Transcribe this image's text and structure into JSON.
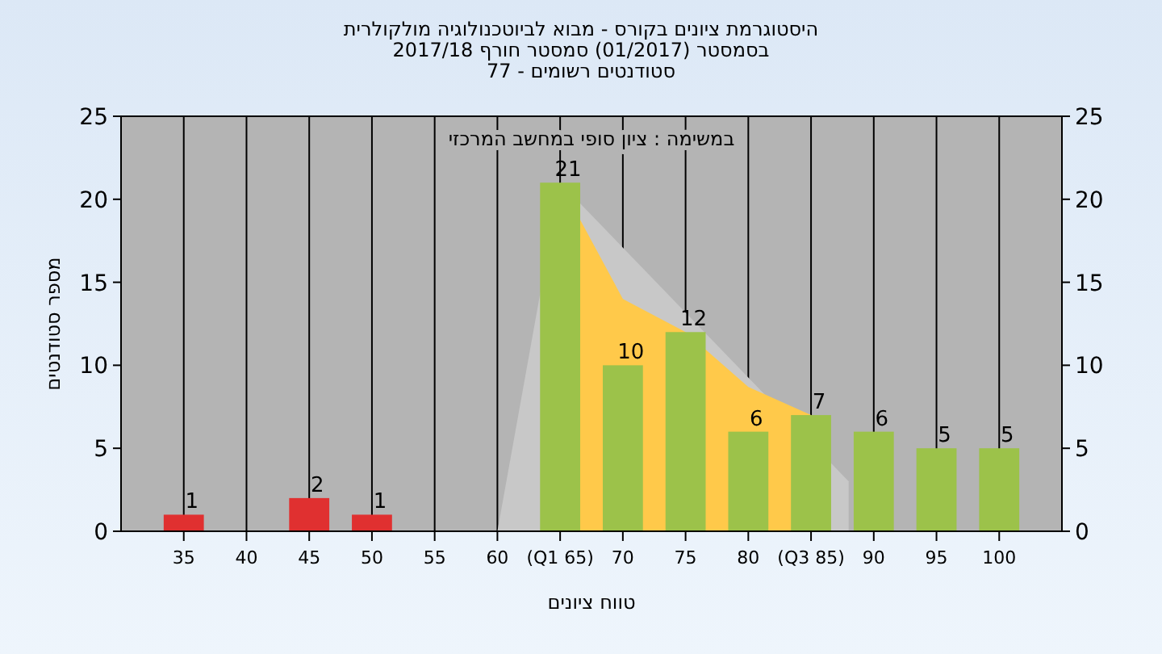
{
  "chart_data": {
    "type": "bar",
    "title": "היסטוגרמת ציונים בקורס - מבוא לביוטכנולוגיה מולקולרית",
    "subtitle": "בסמסטר  (01/2017)  סמסטר חורף 2017/18\nסטודנטים רשומים - 77",
    "xlabel": "טווח ציונים",
    "ylabel": "מספר סטודנטים",
    "annotations": [
      "במשימה : ציון סופי במחשב המרכזי"
    ],
    "series": [
      {
        "type": "area",
        "color": "#c8c8c8",
        "x": [
          60,
          65,
          88
        ],
        "values": [
          0,
          21,
          3
        ]
      },
      {
        "type": "area",
        "color": "#ffc94a",
        "x": [
          65,
          70,
          75,
          80,
          85
        ],
        "values": [
          21,
          14,
          12,
          8.7,
          7
        ]
      },
      {
        "x": [
          35,
          45,
          50,
          65,
          70,
          75,
          80,
          85,
          90,
          95,
          100
        ],
        "values": [
          1,
          2,
          1,
          21,
          10,
          12,
          6,
          7,
          6,
          5,
          5
        ],
        "colors": [
          "#e03030",
          "#e03030",
          "#e03030",
          "#9cc24a",
          "#9cc24a",
          "#9cc24a",
          "#9cc24a",
          "#9cc24a",
          "#9cc24a",
          "#9cc24a",
          "#9cc24a"
        ],
        "value_labels": [
          "1",
          "2",
          "1",
          "21",
          "10",
          "12",
          "6",
          "7",
          "6",
          "5",
          "5"
        ]
      }
    ],
    "xlim": [
      30,
      105
    ],
    "xticks": [
      35,
      40,
      45,
      50,
      55,
      60,
      {
        "value": 65,
        "label": "(Q1 65)"
      },
      70,
      75,
      80,
      {
        "value": 85,
        "label": "(Q3 85)"
      },
      90,
      95,
      100
    ],
    "ylim": [
      0,
      25
    ],
    "yticks": [
      0,
      5,
      10,
      15,
      20,
      25
    ],
    "y2lim": [
      0,
      25
    ],
    "y2ticks": [
      0,
      5,
      10,
      15,
      20,
      25
    ],
    "grid": "x"
  }
}
